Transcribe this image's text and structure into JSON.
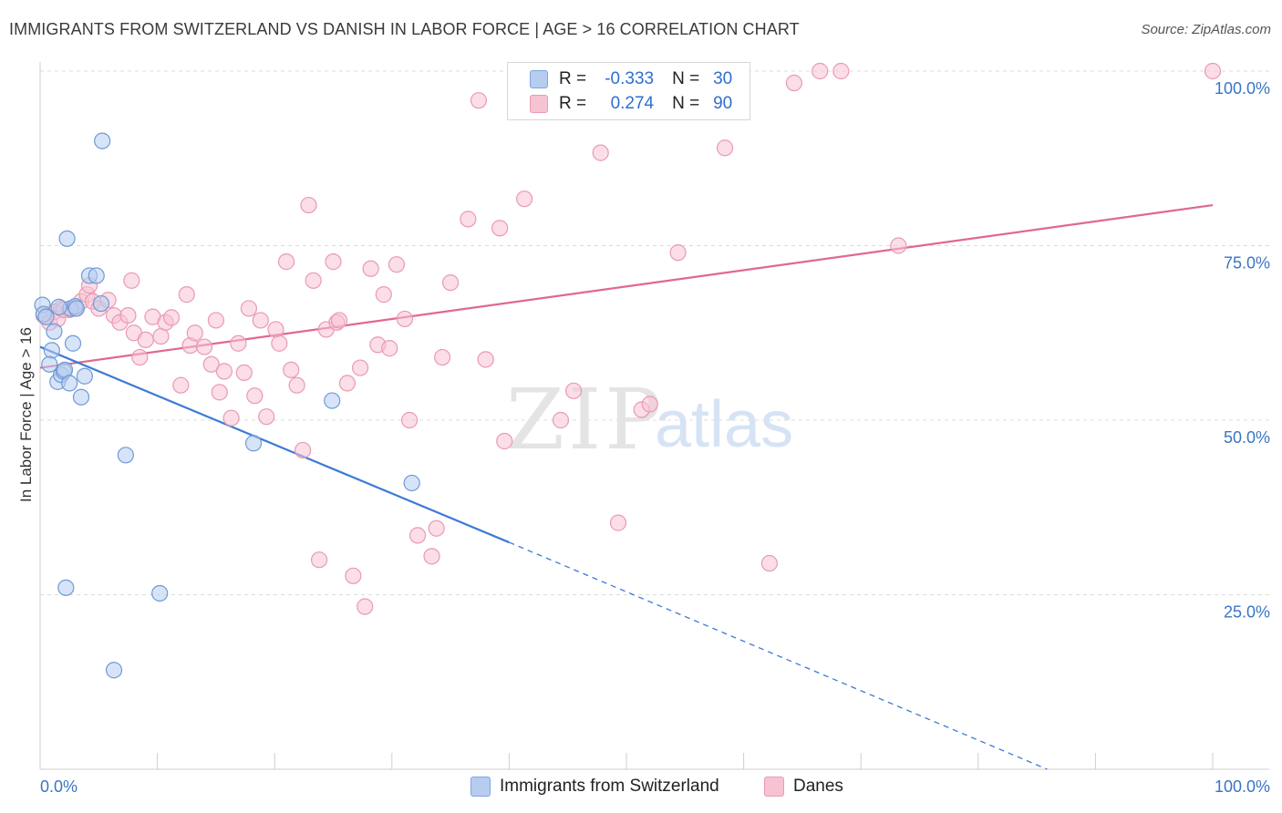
{
  "title": "IMMIGRANTS FROM SWITZERLAND VS DANISH IN LABOR FORCE | AGE > 16 CORRELATION CHART",
  "source": "Source: ZipAtlas.com",
  "watermark": {
    "zip": "ZIP",
    "atlas": "atlas"
  },
  "legend": {
    "r_label": "R =",
    "n_label": "N =",
    "rows": [
      {
        "r": "-0.333",
        "n": "30"
      },
      {
        "r": "0.274",
        "n": "90"
      }
    ]
  },
  "bottom_legend": [
    "Immigrants from Switzerland",
    "Danes"
  ],
  "colors": {
    "blue": "#3a7bd5",
    "pink": "#e06890",
    "blue_fill": "#b6cdf0",
    "pink_fill": "#f7c3d3",
    "tick_text": "#3a75c4"
  },
  "chart_data": {
    "type": "scatter",
    "xlabel": "",
    "ylabel": "In Labor Force | Age > 16",
    "x_tick_labels": [
      "0.0%",
      "100.0%"
    ],
    "y_tick_labels": [
      "25.0%",
      "50.0%",
      "75.0%",
      "100.0%"
    ],
    "xlim": [
      0,
      100
    ],
    "ylim": [
      0,
      100
    ],
    "grid": true,
    "series": [
      {
        "name": "Immigrants from Switzerland",
        "color": "#3a7bd5",
        "points": [
          [
            0.2,
            66.5
          ],
          [
            0.3,
            65.2
          ],
          [
            0.5,
            64.8
          ],
          [
            1.0,
            60.0
          ],
          [
            1.5,
            55.5
          ],
          [
            1.8,
            56.5
          ],
          [
            2.0,
            57.0
          ],
          [
            2.1,
            57.2
          ],
          [
            1.2,
            62.7
          ],
          [
            0.8,
            58.0
          ],
          [
            2.5,
            55.3
          ],
          [
            2.6,
            66.0
          ],
          [
            2.8,
            61.0
          ],
          [
            3.0,
            66.3
          ],
          [
            3.5,
            53.3
          ],
          [
            3.8,
            56.3
          ],
          [
            2.3,
            76.0
          ],
          [
            4.2,
            70.7
          ],
          [
            4.8,
            70.7
          ],
          [
            5.2,
            66.7
          ],
          [
            5.3,
            90.0
          ],
          [
            7.3,
            45.0
          ],
          [
            2.2,
            26.0
          ],
          [
            10.2,
            25.2
          ],
          [
            6.3,
            14.2
          ],
          [
            18.2,
            46.7
          ],
          [
            24.9,
            52.8
          ],
          [
            31.7,
            41.0
          ],
          [
            3.1,
            66.0
          ],
          [
            1.6,
            66.2
          ]
        ],
        "trend": {
          "x0": 0,
          "y0": 60.5,
          "x1": 40,
          "y1": 32.5,
          "dash_x1": 100,
          "dash_y1": -10
        }
      },
      {
        "name": "Danes",
        "color": "#e06890",
        "points": [
          [
            0.3,
            65.0
          ],
          [
            0.8,
            64.0
          ],
          [
            1.2,
            65.5
          ],
          [
            1.8,
            66.0
          ],
          [
            2.5,
            65.8
          ],
          [
            3.0,
            66.0
          ],
          [
            3.5,
            67.0
          ],
          [
            4.0,
            68.0
          ],
          [
            4.5,
            67.0
          ],
          [
            5.0,
            66.0
          ],
          [
            5.8,
            67.2
          ],
          [
            6.3,
            65.0
          ],
          [
            6.8,
            64.0
          ],
          [
            7.5,
            65.0
          ],
          [
            8.0,
            62.5
          ],
          [
            8.5,
            59.0
          ],
          [
            9.0,
            61.5
          ],
          [
            9.6,
            64.8
          ],
          [
            10.3,
            62.0
          ],
          [
            10.7,
            64.0
          ],
          [
            11.2,
            64.7
          ],
          [
            12.0,
            55.0
          ],
          [
            12.5,
            68.0
          ],
          [
            12.8,
            60.7
          ],
          [
            13.2,
            62.5
          ],
          [
            14.0,
            60.5
          ],
          [
            14.6,
            58.0
          ],
          [
            15.0,
            64.3
          ],
          [
            15.3,
            54.0
          ],
          [
            15.7,
            57.0
          ],
          [
            16.3,
            50.3
          ],
          [
            16.9,
            61.0
          ],
          [
            17.4,
            56.8
          ],
          [
            17.8,
            66.0
          ],
          [
            18.3,
            53.5
          ],
          [
            18.8,
            64.3
          ],
          [
            19.3,
            50.5
          ],
          [
            20.1,
            63.0
          ],
          [
            20.4,
            61.0
          ],
          [
            21.0,
            72.7
          ],
          [
            21.4,
            57.2
          ],
          [
            21.9,
            55.0
          ],
          [
            22.4,
            45.7
          ],
          [
            22.9,
            80.8
          ],
          [
            23.3,
            70.0
          ],
          [
            23.8,
            30.0
          ],
          [
            24.4,
            63.0
          ],
          [
            25.0,
            72.7
          ],
          [
            25.3,
            64.0
          ],
          [
            25.5,
            64.3
          ],
          [
            26.2,
            55.3
          ],
          [
            26.7,
            27.7
          ],
          [
            27.3,
            57.5
          ],
          [
            27.7,
            23.3
          ],
          [
            28.2,
            71.7
          ],
          [
            28.8,
            60.8
          ],
          [
            29.3,
            68.0
          ],
          [
            29.8,
            60.3
          ],
          [
            30.4,
            72.3
          ],
          [
            31.1,
            64.5
          ],
          [
            31.5,
            50.0
          ],
          [
            32.2,
            33.5
          ],
          [
            33.4,
            30.5
          ],
          [
            33.8,
            34.5
          ],
          [
            34.3,
            59.0
          ],
          [
            35.0,
            69.7
          ],
          [
            36.5,
            78.8
          ],
          [
            37.4,
            95.8
          ],
          [
            38.0,
            58.7
          ],
          [
            39.2,
            77.5
          ],
          [
            39.6,
            47.0
          ],
          [
            41.3,
            81.7
          ],
          [
            44.4,
            50.0
          ],
          [
            45.5,
            54.2
          ],
          [
            47.8,
            88.3
          ],
          [
            49.3,
            35.3
          ],
          [
            51.3,
            51.5
          ],
          [
            52.0,
            52.3
          ],
          [
            54.4,
            74.0
          ],
          [
            58.4,
            89.0
          ],
          [
            62.2,
            29.5
          ],
          [
            64.3,
            98.3
          ],
          [
            66.5,
            100.0
          ],
          [
            68.3,
            100.0
          ],
          [
            73.2,
            75.0
          ],
          [
            100.0,
            100.0
          ],
          [
            1.5,
            64.5
          ],
          [
            2.0,
            65.8
          ],
          [
            4.2,
            69.3
          ],
          [
            7.8,
            70.0
          ]
        ],
        "trend": {
          "x0": 0,
          "y0": 57.5,
          "x1": 100,
          "y1": 80.8
        }
      }
    ]
  }
}
